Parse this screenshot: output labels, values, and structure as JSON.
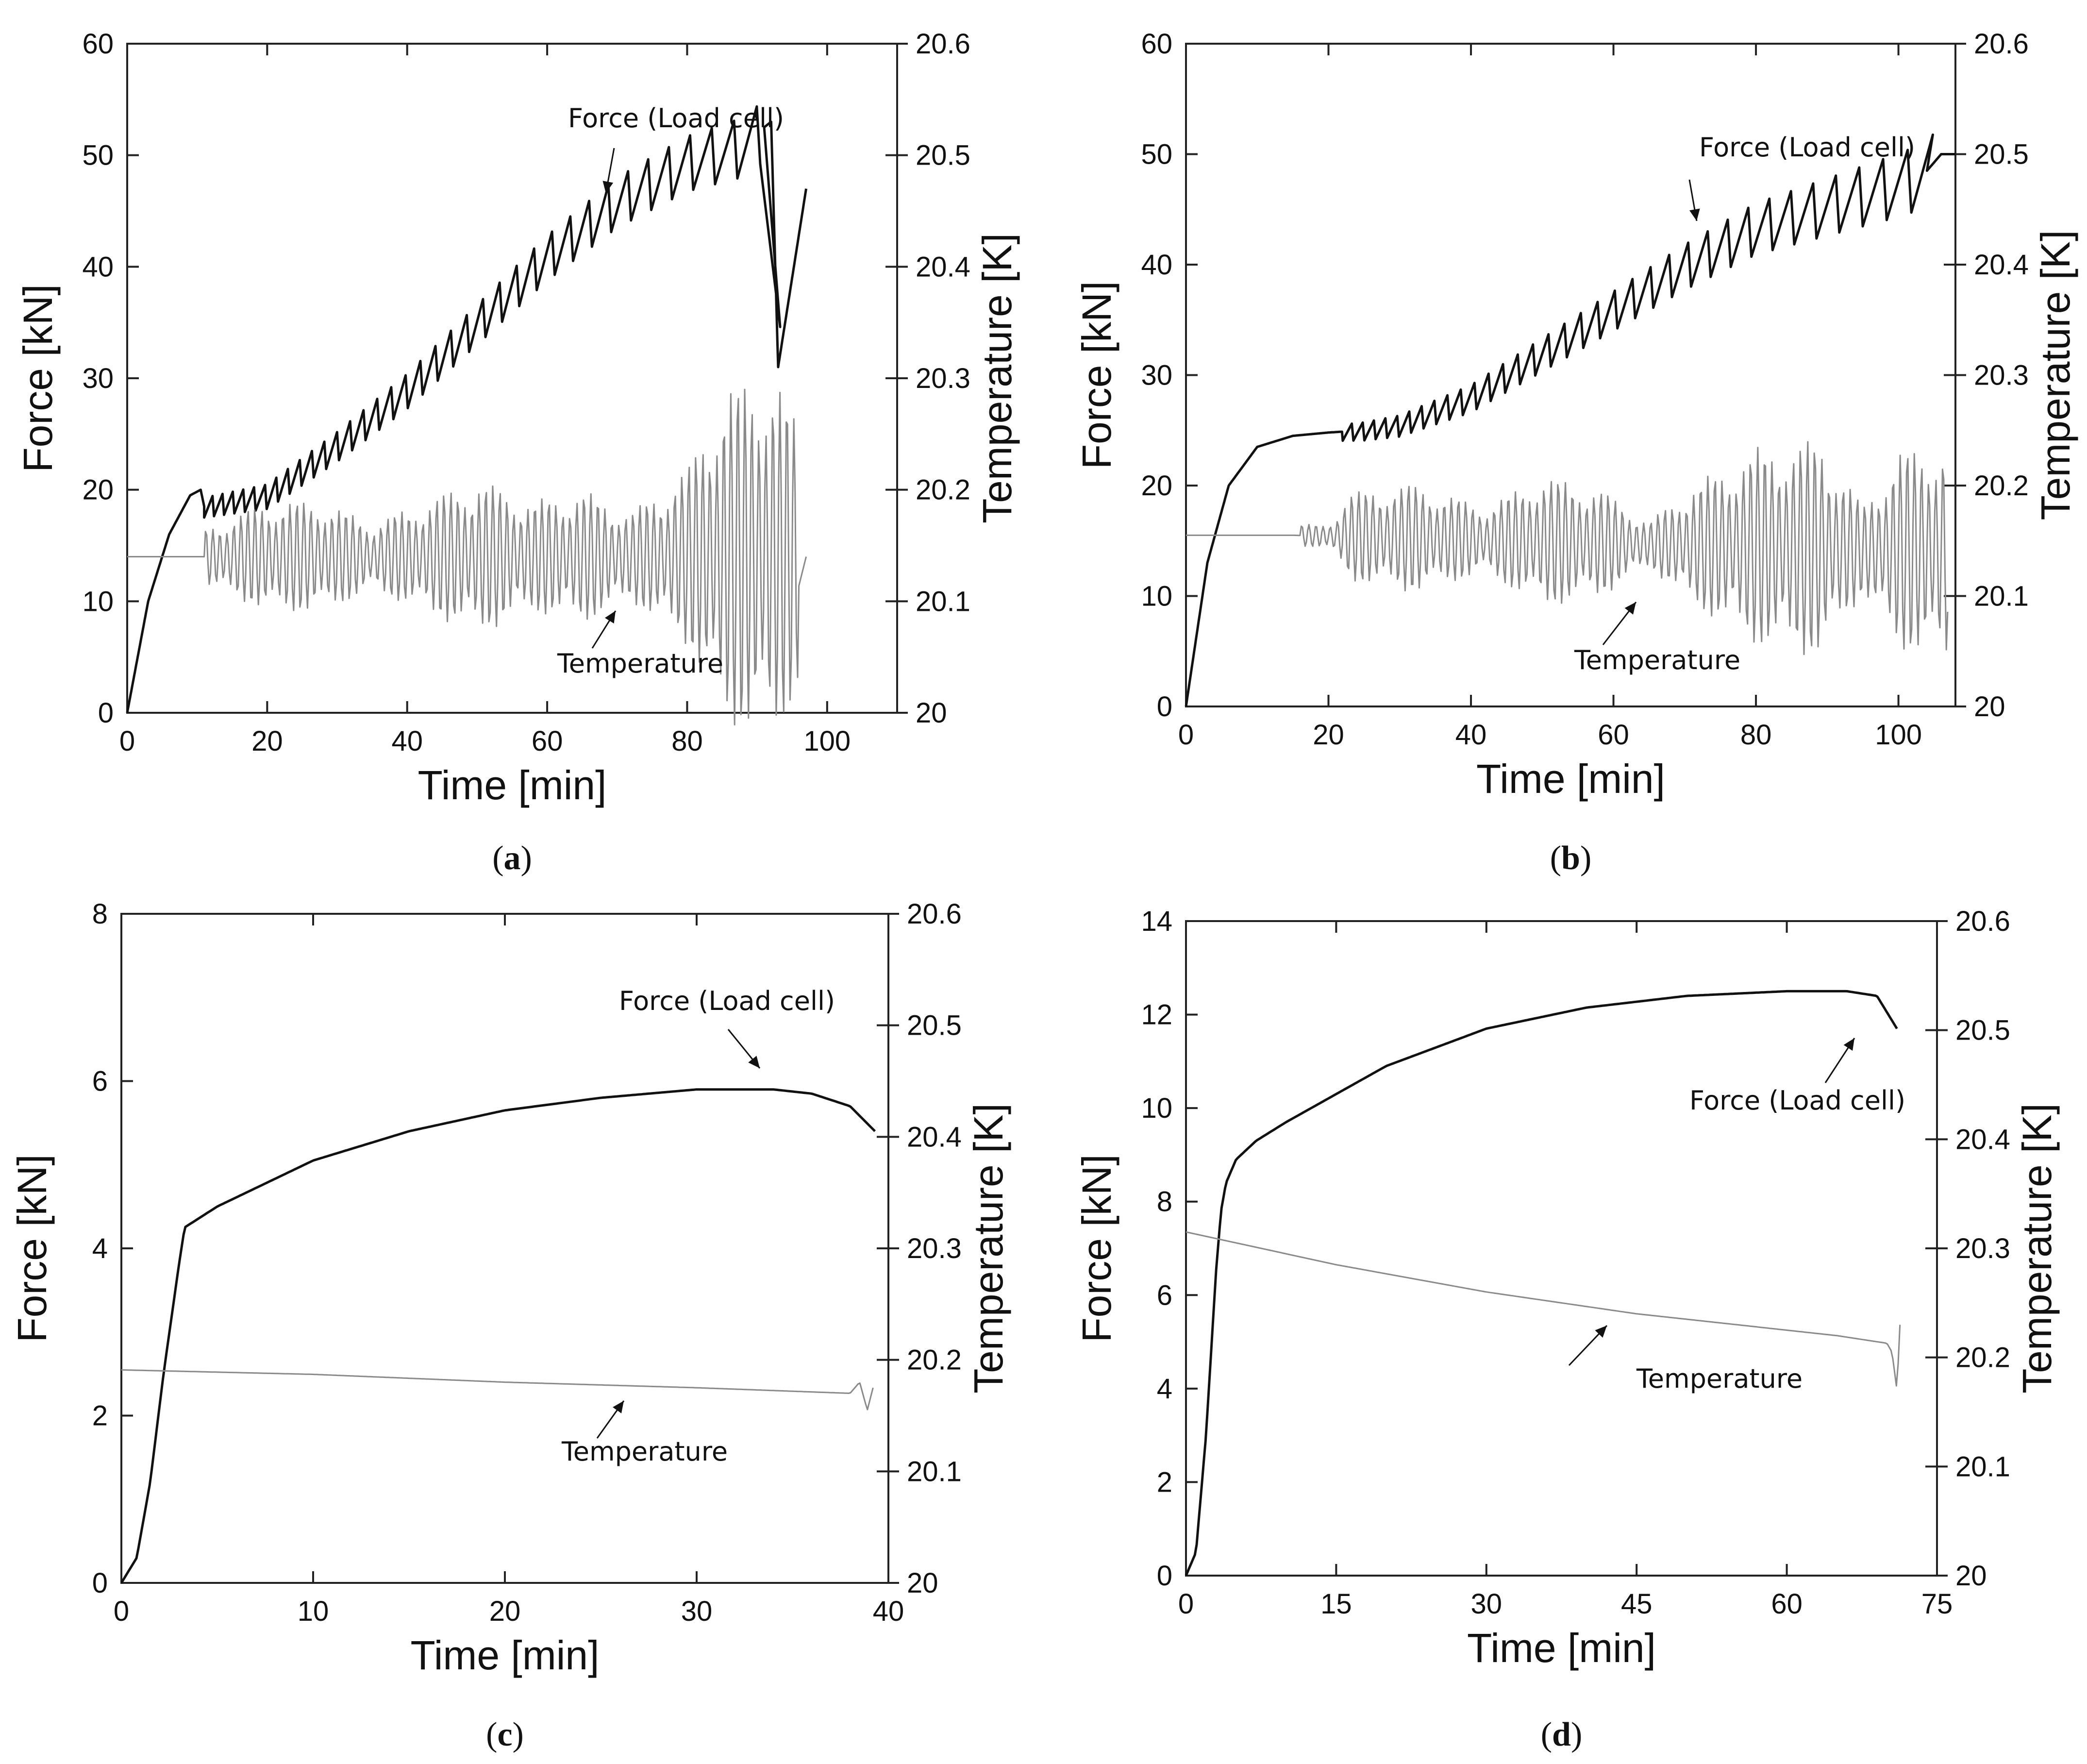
{
  "chart_data": [
    {
      "type": "line",
      "panel": "a",
      "caption": "(a)",
      "caption_letter": "a",
      "xlabel": "Time [min]",
      "ylabel": "Force [kN]",
      "y2label": "Temperature [K]",
      "xlim": [
        0,
        110
      ],
      "ylim": [
        0,
        60
      ],
      "y2lim": [
        20.0,
        20.6
      ],
      "xticks": [
        0,
        20,
        40,
        60,
        80,
        100
      ],
      "yticks": [
        0,
        10,
        20,
        30,
        40,
        50,
        60
      ],
      "y2ticks": [
        "20",
        "20.1",
        "20.2",
        "20.3",
        "20.4",
        "20.5",
        "20.6"
      ],
      "annotations": {
        "force": "Force (Load cell)",
        "temperature": "Temperature"
      },
      "series": [
        {
          "name": "Force (Load cell)",
          "axis": "left",
          "x": [
            0,
            3,
            6,
            9,
            10.5,
            11,
            20,
            30,
            40,
            50,
            60,
            70,
            80,
            88,
            92,
            93,
            97
          ],
          "y": [
            0,
            10,
            16,
            19.5,
            20,
            18.5,
            19.5,
            24,
            29,
            35,
            41,
            46,
            49.5,
            51,
            53,
            31,
            47
          ],
          "oscillation": {
            "start": 11,
            "end": 91,
            "amplitude_start": 1.8,
            "amplitude_end": 5.5,
            "period": 1.4
          }
        },
        {
          "name": "Temperature",
          "axis": "right",
          "x": [
            0,
            11,
            97
          ],
          "y": [
            20.14,
            20.14,
            20.14
          ],
          "oscillation": {
            "start": 11,
            "end": 96,
            "envelope": [
              [
                11,
                0.025
              ],
              [
                20,
                0.05
              ],
              [
                28,
                0.05
              ],
              [
                35,
                0.03
              ],
              [
                50,
                0.07
              ],
              [
                58,
                0.05
              ],
              [
                65,
                0.06
              ],
              [
                72,
                0.04
              ],
              [
                80,
                0.08
              ],
              [
                85,
                0.15
              ],
              [
                92,
                0.17
              ],
              [
                96,
                0.12
              ]
            ],
            "period": 1.0
          }
        }
      ]
    },
    {
      "type": "line",
      "panel": "b",
      "caption": "(b)",
      "caption_letter": "b",
      "xlabel": "Time [min]",
      "ylabel": "Force [kN]",
      "y2label": "Temperature [K]",
      "xlim": [
        0,
        108
      ],
      "ylim": [
        0,
        60
      ],
      "y2lim": [
        20.0,
        20.6
      ],
      "xticks": [
        0,
        20,
        40,
        60,
        80,
        100
      ],
      "yticks": [
        0,
        10,
        20,
        30,
        40,
        50,
        60
      ],
      "y2ticks": [
        "20",
        "20.1",
        "20.2",
        "20.3",
        "20.4",
        "20.5",
        "20.6"
      ],
      "annotations": {
        "force": "Force (Load cell)",
        "temperature": "Temperature"
      },
      "series": [
        {
          "name": "Force (Load cell)",
          "axis": "left",
          "x": [
            0,
            3,
            6,
            10,
            15,
            20,
            25,
            30,
            40,
            50,
            60,
            70,
            80,
            90,
            100,
            104,
            106,
            108
          ],
          "y": [
            0,
            13,
            20,
            23.5,
            24.5,
            24.8,
            25,
            25.5,
            28,
            32,
            36,
            40,
            43.5,
            45.5,
            47.5,
            48.5,
            50,
            50
          ],
          "oscillation": {
            "start": 22,
            "end": 104,
            "amplitude_start": 1.5,
            "amplitude_end": 6,
            "period": 1.5
          }
        },
        {
          "name": "Temperature",
          "axis": "right",
          "x": [
            0,
            15,
            107
          ],
          "y": [
            20.155,
            20.155,
            20.14
          ],
          "oscillation": {
            "start": 16,
            "end": 107,
            "envelope": [
              [
                16,
                0.01
              ],
              [
                20,
                0.01
              ],
              [
                23,
                0.04
              ],
              [
                32,
                0.05
              ],
              [
                42,
                0.03
              ],
              [
                50,
                0.06
              ],
              [
                58,
                0.05
              ],
              [
                65,
                0.02
              ],
              [
                70,
                0.05
              ],
              [
                80,
                0.09
              ],
              [
                89,
                0.1
              ],
              [
                95,
                0.04
              ],
              [
                100,
                0.09
              ],
              [
                106,
                0.1
              ]
            ],
            "period": 1.0
          }
        }
      ]
    },
    {
      "type": "line",
      "panel": "c",
      "caption": "(c)",
      "caption_letter": "c",
      "xlabel": "Time [min]",
      "ylabel": "Force [kN]",
      "y2label": "Temperature [K]",
      "xlim": [
        0,
        40
      ],
      "ylim": [
        0,
        8
      ],
      "y2lim": [
        20.0,
        20.6
      ],
      "xticks": [
        0,
        10,
        20,
        30,
        40
      ],
      "yticks": [
        0,
        2,
        4,
        6,
        8
      ],
      "y2ticks": [
        "20",
        "20.1",
        "20.2",
        "20.3",
        "20.4",
        "20.5",
        "20.6"
      ],
      "annotations": {
        "force": "Force (Load cell)",
        "temperature": "Temperature"
      },
      "series": [
        {
          "name": "Force (Load cell)",
          "axis": "left",
          "x": [
            0,
            0.8,
            1.5,
            2.2,
            3,
            3.3,
            5,
            10,
            15,
            20,
            25,
            30,
            34,
            36,
            38,
            39.3
          ],
          "y": [
            0,
            0.3,
            1.2,
            2.5,
            3.8,
            4.25,
            4.5,
            5.05,
            5.4,
            5.65,
            5.8,
            5.9,
            5.9,
            5.85,
            5.7,
            5.4
          ]
        },
        {
          "name": "Temperature",
          "axis": "right",
          "x": [
            0,
            10,
            20,
            30,
            38,
            38.5,
            38.9,
            39.2
          ],
          "y": [
            20.191,
            20.187,
            20.18,
            20.175,
            20.17,
            20.18,
            20.155,
            20.175
          ]
        }
      ]
    },
    {
      "type": "line",
      "panel": "d",
      "caption": "(d)",
      "caption_letter": "d",
      "xlabel": "Time [min]",
      "ylabel": "Force [kN]",
      "y2label": "Temperature [K]",
      "xlim": [
        0,
        75
      ],
      "ylim": [
        0,
        14
      ],
      "y2lim": [
        20.0,
        20.6
      ],
      "xticks": [
        0,
        15,
        30,
        45,
        60,
        75
      ],
      "yticks": [
        0,
        2,
        4,
        6,
        8,
        10,
        12,
        14
      ],
      "y2ticks": [
        "20",
        "20.1",
        "20.2",
        "20.3",
        "20.4",
        "20.5",
        "20.6"
      ],
      "annotations": {
        "force": "Force (Load cell)",
        "temperature": "Temperature"
      },
      "series": [
        {
          "name": "Force (Load cell)",
          "axis": "left",
          "x": [
            0,
            1,
            2,
            3,
            3.5,
            4,
            5,
            7,
            10,
            15,
            20,
            30,
            40,
            50,
            60,
            66,
            69,
            71
          ],
          "y": [
            0,
            0.5,
            3,
            6.5,
            7.8,
            8.4,
            8.9,
            9.3,
            9.7,
            10.3,
            10.9,
            11.7,
            12.15,
            12.4,
            12.5,
            12.5,
            12.4,
            11.7
          ]
        },
        {
          "name": "Temperature",
          "axis": "right",
          "x": [
            0,
            15,
            30,
            45,
            60,
            65,
            70,
            70.5,
            71,
            71.3
          ],
          "y": [
            20.315,
            20.285,
            20.26,
            20.24,
            20.225,
            20.22,
            20.213,
            20.205,
            20.17,
            20.23
          ]
        }
      ]
    }
  ]
}
